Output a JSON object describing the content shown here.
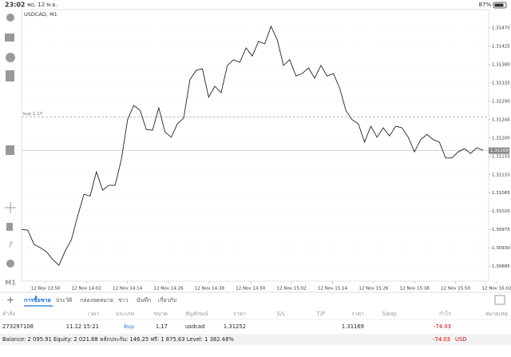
{
  "status_bar": {
    "time": "23:02",
    "date": "พฤ. 12 พ.ย.",
    "battery": "87%"
  },
  "chart": {
    "type": "line",
    "title": "USDCAD, M1",
    "color": "#222222",
    "values": [
      1.30976,
      1.30974,
      1.30939,
      1.30931,
      1.30921,
      1.30902,
      1.30888,
      1.30923,
      1.30951,
      1.31009,
      1.31062,
      1.31058,
      1.31117,
      1.31072,
      1.31084,
      1.31084,
      1.31147,
      1.31245,
      1.3128,
      1.31268,
      1.31221,
      1.31219,
      1.31274,
      1.31215,
      1.31202,
      1.31235,
      1.31249,
      1.31343,
      1.31366,
      1.3137,
      1.313,
      1.31327,
      1.31311,
      1.31378,
      1.31392,
      1.31386,
      1.31421,
      1.31401,
      1.31437,
      1.31431,
      1.31474,
      1.31441,
      1.31378,
      1.31392,
      1.31352,
      1.31358,
      1.31372,
      1.31347,
      1.31378,
      1.31352,
      1.31358,
      1.31323,
      1.31268,
      1.31245,
      1.31235,
      1.3119,
      1.31229,
      1.31202,
      1.31225,
      1.31205,
      1.31229,
      1.31225,
      1.31202,
      1.31166,
      1.31196,
      1.31209,
      1.31196,
      1.3119,
      1.31151,
      1.31151,
      1.31166,
      1.31174,
      1.31162,
      1.31176,
      1.3117
    ],
    "categories": [
      "12 Nov 13:50",
      "12 Nov 14:02",
      "12 Nov 14:14",
      "12 Nov 14:26",
      "12 Nov 14:38",
      "12 Nov 14:50",
      "12 Nov 15:02",
      "12 Nov 15:14",
      "12 Nov 15:26",
      "12 Nov 15:38",
      "12 Nov 15:50",
      "12 Nov 16:02"
    ],
    "ylim": [
      1.30849,
      1.31515
    ],
    "yticks": [
      {
        "value": 1.3147,
        "label": "1.31470"
      },
      1.31425,
      {
        "value": 1.3138,
        "label": "1.31380"
      },
      1.31335,
      {
        "value": 1.3129,
        "label": "1.31290"
      },
      1.31245,
      {
        "value": 1.312,
        "label": "1.31200"
      },
      1.31155,
      {
        "value": 1.3111,
        "label": "1.31110"
      },
      1.31065,
      {
        "value": 1.3102,
        "label": "1.31020"
      },
      1.30975,
      {
        "value": 1.3093,
        "label": "1.30930"
      },
      1.30885
    ],
    "current_price": 1.31169,
    "buy_line": {
      "label": "buy 1.17",
      "value": 1.31252
    }
  },
  "tabs": [
    "การซื้อขาย",
    "ประวัติ",
    "กล่องจดหมาย",
    "ข่าว",
    "บันทึก",
    "เกี่ยวกับ"
  ],
  "table": {
    "columns": [
      "คำสั่ง",
      "เวลา",
      "ประเภท",
      "ขนาด",
      "สัญลักษณ์",
      "ราคา",
      "S/L",
      "T/P",
      "ราคา",
      "Swap",
      "กำไร",
      "หมายเหตุ"
    ],
    "rows": [
      [
        "273297108",
        "11.12 15:21",
        "buy",
        "1.17",
        "usdcad",
        "1.31252",
        null,
        null,
        "1.31169",
        null,
        "-74.03",
        null
      ]
    ]
  },
  "footer": {
    "summary": "Balance: 2 095.91 Equity: 2 021.88 หลักประกัน: 146.25 ฟรี: 1 875.63 Level: 1 382.48%",
    "profit": "-74.03",
    "currency": "USD"
  }
}
